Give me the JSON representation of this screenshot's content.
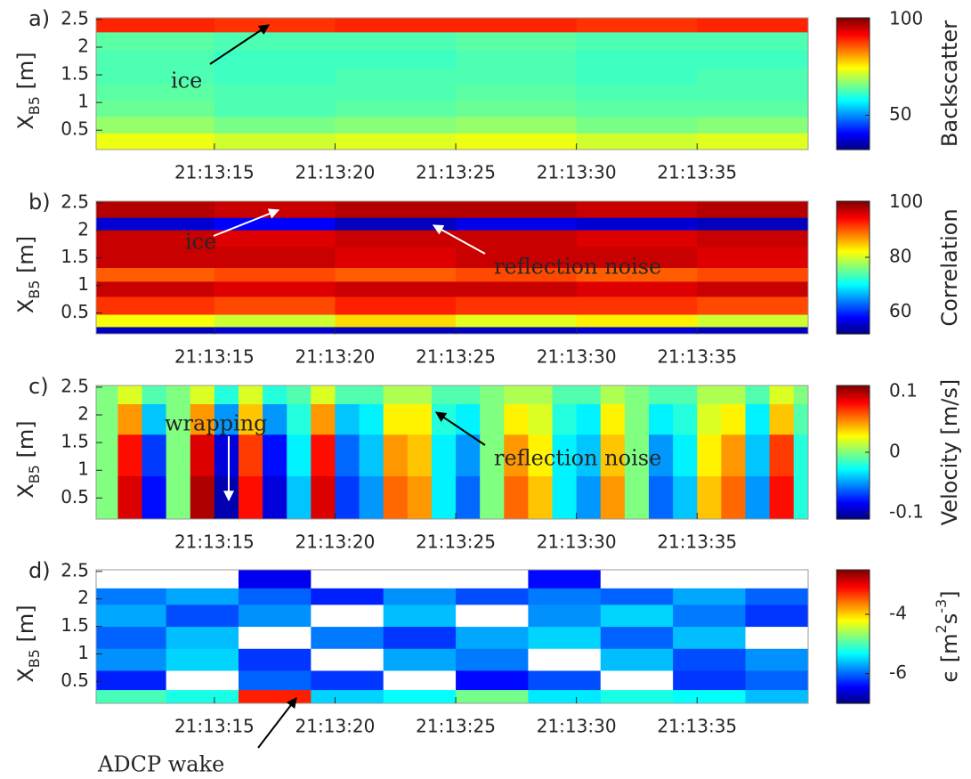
{
  "chart_data": [
    {
      "type": "heatmap",
      "panel_label": "a)",
      "colormap": "jet",
      "ylabel": [
        {
          "text": "X"
        },
        {
          "text": "B5",
          "sub": true
        },
        {
          "text": " [m]"
        }
      ],
      "colorbar_label": [
        {
          "text": "Backscatter"
        }
      ],
      "xlim": [
        10.1,
        39.6
      ],
      "ylim": [
        0.15,
        2.53
      ],
      "clim": [
        32,
        101
      ],
      "xticks": [
        {
          "value": 15,
          "label": "21:13:15"
        },
        {
          "value": 20,
          "label": "21:13:20"
        },
        {
          "value": 25,
          "label": "21:13:25"
        },
        {
          "value": 30,
          "label": "21:13:30"
        },
        {
          "value": 35,
          "label": "21:13:35"
        }
      ],
      "yticks": [
        0.5,
        1,
        1.5,
        2,
        2.5
      ],
      "cticks": [
        50,
        100
      ],
      "x": [
        12.5,
        17.5,
        22.5,
        27.5,
        32.5,
        37.5
      ],
      "y": [
        0.3,
        0.6,
        0.9,
        1.2,
        1.5,
        1.8,
        2.1,
        2.45
      ],
      "z": [
        [
          74,
          72,
          73,
          74,
          72,
          73
        ],
        [
          68,
          66,
          67,
          68,
          66,
          67
        ],
        [
          65,
          63,
          64,
          65,
          64,
          64
        ],
        [
          64,
          63,
          63,
          64,
          63,
          63
        ],
        [
          63,
          62,
          63,
          63,
          62,
          63
        ],
        [
          63,
          62,
          62,
          63,
          62,
          62
        ],
        [
          64,
          63,
          63,
          64,
          63,
          63
        ],
        [
          90,
          89,
          90,
          90,
          89,
          90
        ]
      ],
      "annotations": [
        {
          "text": "ice",
          "color": "#000000"
        }
      ]
    },
    {
      "type": "heatmap",
      "panel_label": "b)",
      "colormap": "jet",
      "ylabel": [
        {
          "text": "X"
        },
        {
          "text": "B5",
          "sub": true
        },
        {
          "text": " [m]"
        }
      ],
      "colorbar_label": [
        {
          "text": "Correlation"
        }
      ],
      "xlim": [
        10.1,
        39.6
      ],
      "ylim": [
        0.12,
        2.53
      ],
      "clim": [
        52,
        100.5
      ],
      "xticks": [
        {
          "value": 15,
          "label": "21:13:15"
        },
        {
          "value": 20,
          "label": "21:13:20"
        },
        {
          "value": 25,
          "label": "21:13:25"
        },
        {
          "value": 30,
          "label": "21:13:30"
        },
        {
          "value": 35,
          "label": "21:13:35"
        }
      ],
      "yticks": [
        0.5,
        1,
        1.5,
        2,
        2.5
      ],
      "cticks": [
        60,
        80,
        100
      ],
      "x": [
        12.5,
        17.5,
        22.5,
        27.5,
        32.5,
        37.5
      ],
      "y": [
        0.15,
        0.35,
        0.6,
        1.0,
        1.15,
        1.5,
        1.9,
        2.12,
        2.35
      ],
      "z": [
        [
          55,
          56,
          55,
          55,
          56,
          55
        ],
        [
          82,
          80,
          84,
          81,
          83,
          80
        ],
        [
          92,
          91,
          93,
          92,
          92,
          91
        ],
        [
          97,
          96,
          97,
          97,
          96,
          97
        ],
        [
          90,
          91,
          90,
          91,
          90,
          91
        ],
        [
          97,
          97,
          96,
          97,
          97,
          96
        ],
        [
          97,
          96,
          97,
          97,
          96,
          97
        ],
        [
          56,
          58,
          55,
          57,
          56,
          55
        ],
        [
          98,
          97,
          98,
          98,
          97,
          98
        ]
      ],
      "annotations": [
        {
          "text": "ice",
          "color": "#ffffff"
        },
        {
          "text": "reflection noise",
          "color": "#ffffff"
        }
      ]
    },
    {
      "type": "heatmap",
      "panel_label": "c)",
      "colormap": "jet",
      "ylabel": [
        {
          "text": "X"
        },
        {
          "text": "B5",
          "sub": true
        },
        {
          "text": " [m]"
        }
      ],
      "colorbar_label": [
        {
          "text": "Velocity [m/s]"
        }
      ],
      "xlim": [
        10.1,
        39.6
      ],
      "ylim": [
        0.12,
        2.53
      ],
      "clim": [
        -0.11,
        0.11
      ],
      "xticks": [
        {
          "value": 15,
          "label": "21:13:15"
        },
        {
          "value": 20,
          "label": "21:13:20"
        },
        {
          "value": 25,
          "label": "21:13:25"
        },
        {
          "value": 30,
          "label": "21:13:30"
        },
        {
          "value": 35,
          "label": "21:13:35"
        }
      ],
      "yticks": [
        0.5,
        1,
        1.5,
        2,
        2.5
      ],
      "cticks": [
        -0.1,
        0,
        0.1
      ],
      "x": [
        10.5,
        11.5,
        12.5,
        13.5,
        14.5,
        15.5,
        16.5,
        17.5,
        18.5,
        19.5,
        20.5,
        21.5,
        22.5,
        23.5,
        24.5,
        25.5,
        26.5,
        27.5,
        28.5,
        29.5,
        30.5,
        31.5,
        32.5,
        33.5,
        34.5,
        35.5,
        36.5,
        37.5,
        38.5,
        39.5
      ],
      "y": [
        0.5,
        1.3,
        2.0,
        2.4
      ],
      "z": [
        [
          0.0,
          0.09,
          -0.08,
          0.0,
          0.1,
          -0.1,
          0.08,
          -0.09,
          -0.04,
          0.09,
          -0.07,
          -0.05,
          0.06,
          0.05,
          -0.03,
          -0.06,
          0.0,
          0.06,
          0.04,
          -0.03,
          -0.05,
          0.05,
          0.0,
          -0.06,
          -0.04,
          0.04,
          0.06,
          -0.05,
          0.08,
          -0.02
        ],
        [
          0.0,
          0.08,
          -0.07,
          0.0,
          0.09,
          -0.09,
          0.07,
          -0.08,
          -0.03,
          0.08,
          -0.06,
          -0.04,
          0.05,
          0.04,
          -0.03,
          -0.05,
          0.0,
          0.05,
          0.03,
          -0.03,
          -0.04,
          0.04,
          0.0,
          -0.05,
          -0.03,
          0.03,
          0.05,
          -0.04,
          0.07,
          -0.02
        ],
        [
          0.0,
          0.05,
          -0.04,
          0.0,
          0.05,
          -0.05,
          0.04,
          -0.05,
          -0.02,
          0.05,
          -0.04,
          -0.03,
          0.03,
          0.03,
          -0.02,
          -0.03,
          0.0,
          0.03,
          0.02,
          -0.02,
          -0.03,
          0.03,
          0.0,
          -0.03,
          -0.02,
          0.02,
          0.03,
          -0.03,
          0.04,
          -0.01
        ],
        [
          0.0,
          0.02,
          -0.01,
          0.0,
          0.02,
          -0.02,
          0.02,
          -0.02,
          -0.01,
          0.02,
          -0.01,
          -0.01,
          0.01,
          0.01,
          -0.01,
          -0.01,
          0.0,
          0.01,
          0.01,
          -0.01,
          -0.01,
          0.01,
          0.0,
          -0.01,
          -0.01,
          0.01,
          0.01,
          -0.01,
          0.02,
          0.0
        ]
      ],
      "annotations": [
        {
          "text": "wrapping",
          "color": "#000000",
          "arrow_color": "#ffffff"
        },
        {
          "text": "reflection noise",
          "color": "#000000"
        }
      ]
    },
    {
      "type": "heatmap",
      "panel_label": "d)",
      "colormap": "jet",
      "ylabel": [
        {
          "text": "X"
        },
        {
          "text": "B5",
          "sub": true
        },
        {
          "text": " [m]"
        }
      ],
      "colorbar_label": [
        {
          "text": "ϵ [m"
        },
        {
          "text": "2",
          "sup": true
        },
        {
          "text": "s"
        },
        {
          "text": "-3",
          "sup": true
        },
        {
          "text": "]"
        }
      ],
      "xlim": [
        10.1,
        39.6
      ],
      "ylim": [
        0.1,
        2.53
      ],
      "clim": [
        -7,
        -2.5
      ],
      "xticks": [
        {
          "value": 15,
          "label": "21:13:15"
        },
        {
          "value": 20,
          "label": "21:13:20"
        },
        {
          "value": 25,
          "label": "21:13:25"
        },
        {
          "value": 30,
          "label": "21:13:30"
        },
        {
          "value": 35,
          "label": "21:13:35"
        }
      ],
      "yticks": [
        0.5,
        1,
        1.5,
        2,
        2.5
      ],
      "cticks": [
        -6,
        -4
      ],
      "x": [
        11.5,
        14.5,
        17.5,
        20.5,
        23.5,
        26.5,
        29.5,
        32.5,
        35.5,
        38.5
      ],
      "y": [
        0.2,
        0.5,
        0.9,
        1.3,
        1.7,
        2.1,
        2.3
      ],
      "z": [
        [
          -5.0,
          -5.2,
          -3.2,
          -5.5,
          -5.3,
          -4.8,
          -5.4,
          -5.2,
          -5.3,
          -5.6
        ],
        [
          -6.3,
          null,
          -6.0,
          -6.2,
          null,
          -6.4,
          -6.1,
          null,
          -6.2,
          -6.0
        ],
        [
          -5.8,
          -5.5,
          -6.2,
          null,
          -5.7,
          -5.9,
          null,
          -5.6,
          -6.1,
          -5.8
        ],
        [
          -6.0,
          -5.6,
          null,
          -5.9,
          -6.2,
          -5.7,
          -5.5,
          -6.0,
          -5.6,
          null
        ],
        [
          -5.7,
          -6.1,
          -5.8,
          null,
          -5.6,
          null,
          -5.8,
          -5.5,
          -5.9,
          -6.2
        ],
        [
          -5.9,
          -5.7,
          -6.0,
          -6.3,
          -5.8,
          -6.1,
          -5.9,
          -6.0,
          -5.7,
          -6.0
        ],
        [
          null,
          null,
          -6.5,
          null,
          null,
          null,
          -6.4,
          null,
          null,
          null
        ]
      ],
      "annotations": [
        {
          "text": "ADCP wake",
          "color": "#000000"
        }
      ]
    }
  ]
}
